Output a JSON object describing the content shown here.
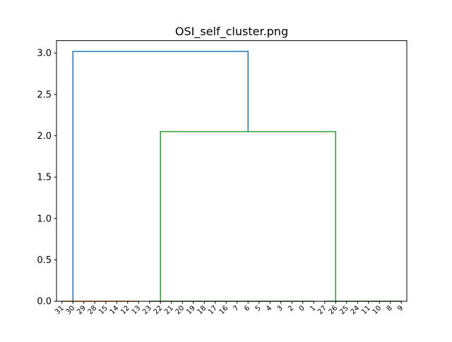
{
  "chart_data": {
    "type": "dendrogram",
    "title": "OSI_self_cluster.png",
    "xlabel": "",
    "ylabel": "",
    "ylim": [
      0,
      3.15
    ],
    "yticks": [
      0.0,
      0.5,
      1.0,
      1.5,
      2.0,
      2.5,
      3.0
    ],
    "ytick_labels": [
      "0.0",
      "0.5",
      "1.0",
      "1.5",
      "2.0",
      "2.5",
      "3.0"
    ],
    "leaf_labels": [
      "31",
      "30",
      "29",
      "28",
      "15",
      "14",
      "12",
      "13",
      "23",
      "22",
      "21",
      "20",
      "19",
      "18",
      "17",
      "16",
      "7",
      "6",
      "5",
      "4",
      "3",
      "2",
      "0",
      "1",
      "27",
      "26",
      "25",
      "24",
      "11",
      "10",
      "8",
      "9"
    ],
    "grid": false,
    "colors": {
      "orange": "#ff7f0e",
      "green": "#2ca02c",
      "blue": "#1f77b4",
      "axes": "#000000"
    },
    "links": [
      {
        "x": [
          1,
          1,
          2,
          2
        ],
        "y": [
          0,
          0,
          0,
          0
        ],
        "color": "orange"
      },
      {
        "x": [
          3,
          3,
          4,
          4
        ],
        "y": [
          0,
          0,
          0,
          0
        ],
        "color": "orange"
      },
      {
        "x": [
          1.5,
          1.5,
          3.5,
          3.5
        ],
        "y": [
          0,
          0,
          0,
          0
        ],
        "color": "orange"
      },
      {
        "x": [
          5,
          5,
          6,
          6
        ],
        "y": [
          0,
          0,
          0,
          0
        ],
        "color": "orange"
      },
      {
        "x": [
          7,
          7,
          8,
          8
        ],
        "y": [
          0,
          0,
          0,
          0
        ],
        "color": "orange"
      },
      {
        "x": [
          5.5,
          5.5,
          7.5,
          7.5
        ],
        "y": [
          0,
          0,
          0,
          0
        ],
        "color": "orange"
      },
      {
        "x": [
          2.5,
          2.5,
          6.5,
          6.5
        ],
        "y": [
          0,
          0,
          0,
          0
        ],
        "color": "orange"
      },
      {
        "x": [
          9,
          9,
          10,
          10
        ],
        "y": [
          0,
          0,
          0,
          0
        ],
        "color": "green"
      },
      {
        "x": [
          11,
          11,
          12,
          12
        ],
        "y": [
          0,
          0,
          0,
          0
        ],
        "color": "green"
      },
      {
        "x": [
          13,
          13,
          14,
          14
        ],
        "y": [
          0,
          0,
          0,
          0
        ],
        "color": "green"
      },
      {
        "x": [
          15,
          15,
          16,
          16
        ],
        "y": [
          0,
          0,
          0,
          0
        ],
        "color": "green"
      },
      {
        "x": [
          17,
          17,
          18,
          18
        ],
        "y": [
          0,
          0,
          0,
          0
        ],
        "color": "green"
      },
      {
        "x": [
          19,
          19,
          20,
          20
        ],
        "y": [
          0,
          0,
          0,
          0
        ],
        "color": "green"
      },
      {
        "x": [
          21,
          21,
          22,
          22
        ],
        "y": [
          0,
          0,
          0,
          0
        ],
        "color": "green"
      },
      {
        "x": [
          23,
          23,
          24,
          24
        ],
        "y": [
          0,
          0,
          0,
          0
        ],
        "color": "green"
      },
      {
        "x": [
          11.5,
          11.5,
          13.5,
          13.5
        ],
        "y": [
          0,
          0,
          0,
          0
        ],
        "color": "green"
      },
      {
        "x": [
          15.5,
          15.5,
          17.5,
          17.5
        ],
        "y": [
          0,
          0,
          0,
          0
        ],
        "color": "green"
      },
      {
        "x": [
          19.5,
          19.5,
          21.5,
          21.5
        ],
        "y": [
          0,
          0,
          0,
          0
        ],
        "color": "green"
      },
      {
        "x": [
          12.5,
          12.5,
          16.5,
          16.5
        ],
        "y": [
          0,
          0,
          0,
          0
        ],
        "color": "green"
      },
      {
        "x": [
          14.5,
          14.5,
          20.5,
          20.5
        ],
        "y": [
          0,
          0,
          0,
          0
        ],
        "color": "green"
      },
      {
        "x": [
          17.5,
          17.5,
          23.5,
          23.5
        ],
        "y": [
          0,
          0,
          0,
          0
        ],
        "color": "green"
      },
      {
        "x": [
          9.5,
          9.5,
          20.5,
          20.5
        ],
        "y": [
          0,
          0,
          0,
          0
        ],
        "color": "green"
      },
      {
        "x": [
          25,
          25,
          26,
          26
        ],
        "y": [
          0,
          0,
          0,
          0
        ],
        "color": "green"
      },
      {
        "x": [
          27,
          27,
          28,
          28
        ],
        "y": [
          0,
          0,
          0,
          0
        ],
        "color": "green"
      },
      {
        "x": [
          29,
          29,
          30,
          30
        ],
        "y": [
          0,
          0,
          0,
          0
        ],
        "color": "green"
      },
      {
        "x": [
          31,
          31,
          32,
          32
        ],
        "y": [
          0,
          0,
          0,
          0
        ],
        "color": "green"
      },
      {
        "x": [
          25.5,
          25.5,
          27.5,
          27.5
        ],
        "y": [
          0,
          0,
          0,
          0
        ],
        "color": "green"
      },
      {
        "x": [
          29.5,
          29.5,
          31.5,
          31.5
        ],
        "y": [
          0,
          0,
          0,
          0
        ],
        "color": "green"
      },
      {
        "x": [
          26.5,
          26.5,
          30.5,
          30.5
        ],
        "y": [
          0,
          0,
          0,
          0
        ],
        "color": "green"
      },
      {
        "x": [
          10,
          10,
          26,
          26
        ],
        "y": [
          0,
          2.05,
          2.05,
          0
        ],
        "color": "green"
      },
      {
        "x": [
          2,
          2,
          18,
          18
        ],
        "y": [
          0,
          3.02,
          3.02,
          2.05
        ],
        "color": "blue"
      }
    ]
  }
}
